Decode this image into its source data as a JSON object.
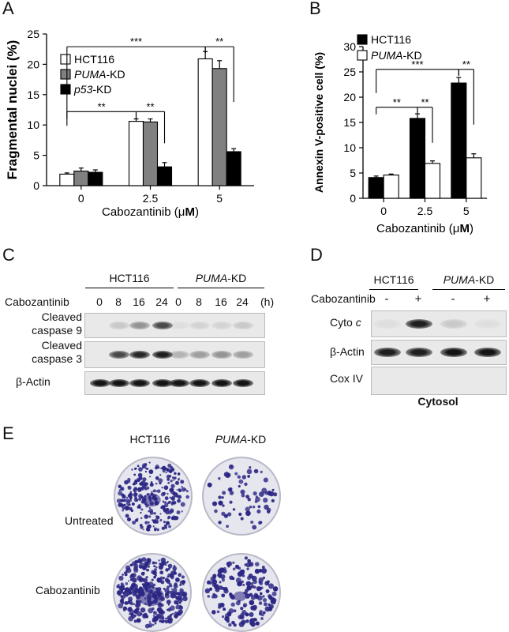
{
  "panels": {
    "A": {
      "letter": "A",
      "chart_data": {
        "type": "bar",
        "ylabel": "Fragmental nuclei (%)",
        "xlabel_prefix": "Cabozantinib (",
        "xlabel_mu": "μ",
        "xlabel_unit": "M",
        "xlabel_suffix": ")",
        "categories": [
          "0",
          "2.5",
          "5"
        ],
        "ylim": [
          0,
          25
        ],
        "yticks": [
          "0",
          "5",
          "10",
          "15",
          "20",
          "25"
        ],
        "series": [
          {
            "name_italic": "",
            "name_rest": "HCT116",
            "color": "#ffffff",
            "values": [
              1.9,
              10.6,
              20.9
            ],
            "errors": [
              0.2,
              0.4,
              1.2
            ]
          },
          {
            "name_italic": "PUMA",
            "name_rest": "-KD",
            "color": "#808080",
            "values": [
              2.4,
              10.5,
              19.3
            ],
            "errors": [
              0.5,
              0.5,
              1.3
            ]
          },
          {
            "name_italic": "p53",
            "name_rest": "-KD",
            "color": "#000000",
            "values": [
              2.2,
              3.1,
              5.6
            ],
            "errors": [
              0.4,
              0.7,
              0.5
            ]
          }
        ],
        "significance": [
          "**",
          "**",
          "***",
          "**"
        ]
      }
    },
    "B": {
      "letter": "B",
      "chart_data": {
        "type": "bar",
        "ylabel": "Annexin V-positive cell (%)",
        "xlabel_prefix": "Cabozantinib (",
        "xlabel_mu": "μ",
        "xlabel_unit": "M",
        "xlabel_suffix": ")",
        "categories": [
          "0",
          "2.5",
          "5"
        ],
        "ylim": [
          0,
          30
        ],
        "yticks": [
          "0",
          "5",
          "10",
          "15",
          "20",
          "25",
          "30"
        ],
        "series": [
          {
            "name_italic": "",
            "name_rest": "HCT116",
            "color": "#000000",
            "values": [
              4.1,
              15.8,
              22.8
            ],
            "errors": [
              0.3,
              0.9,
              1.1
            ]
          },
          {
            "name_italic": "PUMA",
            "name_rest": "-KD",
            "color": "#ffffff",
            "values": [
              4.6,
              6.9,
              8.0
            ],
            "errors": [
              0.2,
              0.5,
              0.8
            ]
          }
        ],
        "significance": [
          "**",
          "**",
          "***",
          "**"
        ]
      }
    },
    "C": {
      "letter": "C",
      "groups": [
        {
          "italic": "",
          "rest": "HCT116"
        },
        {
          "italic": "PUMA",
          "rest": "-KD"
        }
      ],
      "treatment_label": "Cabozantinib",
      "timepoints": [
        "0",
        "8",
        "16",
        "24",
        "0",
        "8",
        "16",
        "24"
      ],
      "unit": "(h)",
      "rows": [
        {
          "line1": "Cleaved",
          "line2": "caspase 9",
          "intensity": [
            0.0,
            0.15,
            0.4,
            0.75,
            0.05,
            0.1,
            0.1,
            0.15
          ]
        },
        {
          "line1": "Cleaved",
          "line2": "caspase 3",
          "intensity": [
            0.0,
            0.75,
            0.9,
            0.95,
            0.25,
            0.35,
            0.4,
            0.35
          ]
        },
        {
          "line1": "β-Actin",
          "line2": "",
          "intensity": [
            1,
            1,
            1,
            1,
            1,
            1,
            1,
            1
          ]
        }
      ]
    },
    "D": {
      "letter": "D",
      "groups": [
        {
          "italic": "",
          "rest": "HCT116"
        },
        {
          "italic": "PUMA",
          "rest": "-KD"
        }
      ],
      "treatment_label": "Cabozantinib",
      "lanes": [
        "-",
        "+",
        "-",
        "+"
      ],
      "rows": [
        {
          "label_prefix": "Cyto ",
          "label_italic": "c",
          "intensity": [
            0.05,
            0.95,
            0.15,
            0.05
          ]
        },
        {
          "label_prefix": "β-Actin",
          "label_italic": "",
          "intensity": [
            0.95,
            0.95,
            1,
            1
          ]
        },
        {
          "label_prefix": "Cox IV",
          "label_italic": "",
          "intensity": [
            0,
            0,
            0,
            0
          ]
        }
      ],
      "fraction": "Cytosol"
    },
    "E": {
      "letter": "E",
      "columns": [
        {
          "italic": "",
          "rest": "HCT116"
        },
        {
          "italic": "PUMA",
          "rest": "-KD"
        }
      ],
      "rows": [
        "Untreated",
        "Cabozantinib"
      ]
    }
  },
  "colors": {
    "stain": "#2b2683",
    "dish_bg": "#e6e6ee",
    "blot_bg": "#e8e8e8",
    "band": "#1a1a1a"
  }
}
